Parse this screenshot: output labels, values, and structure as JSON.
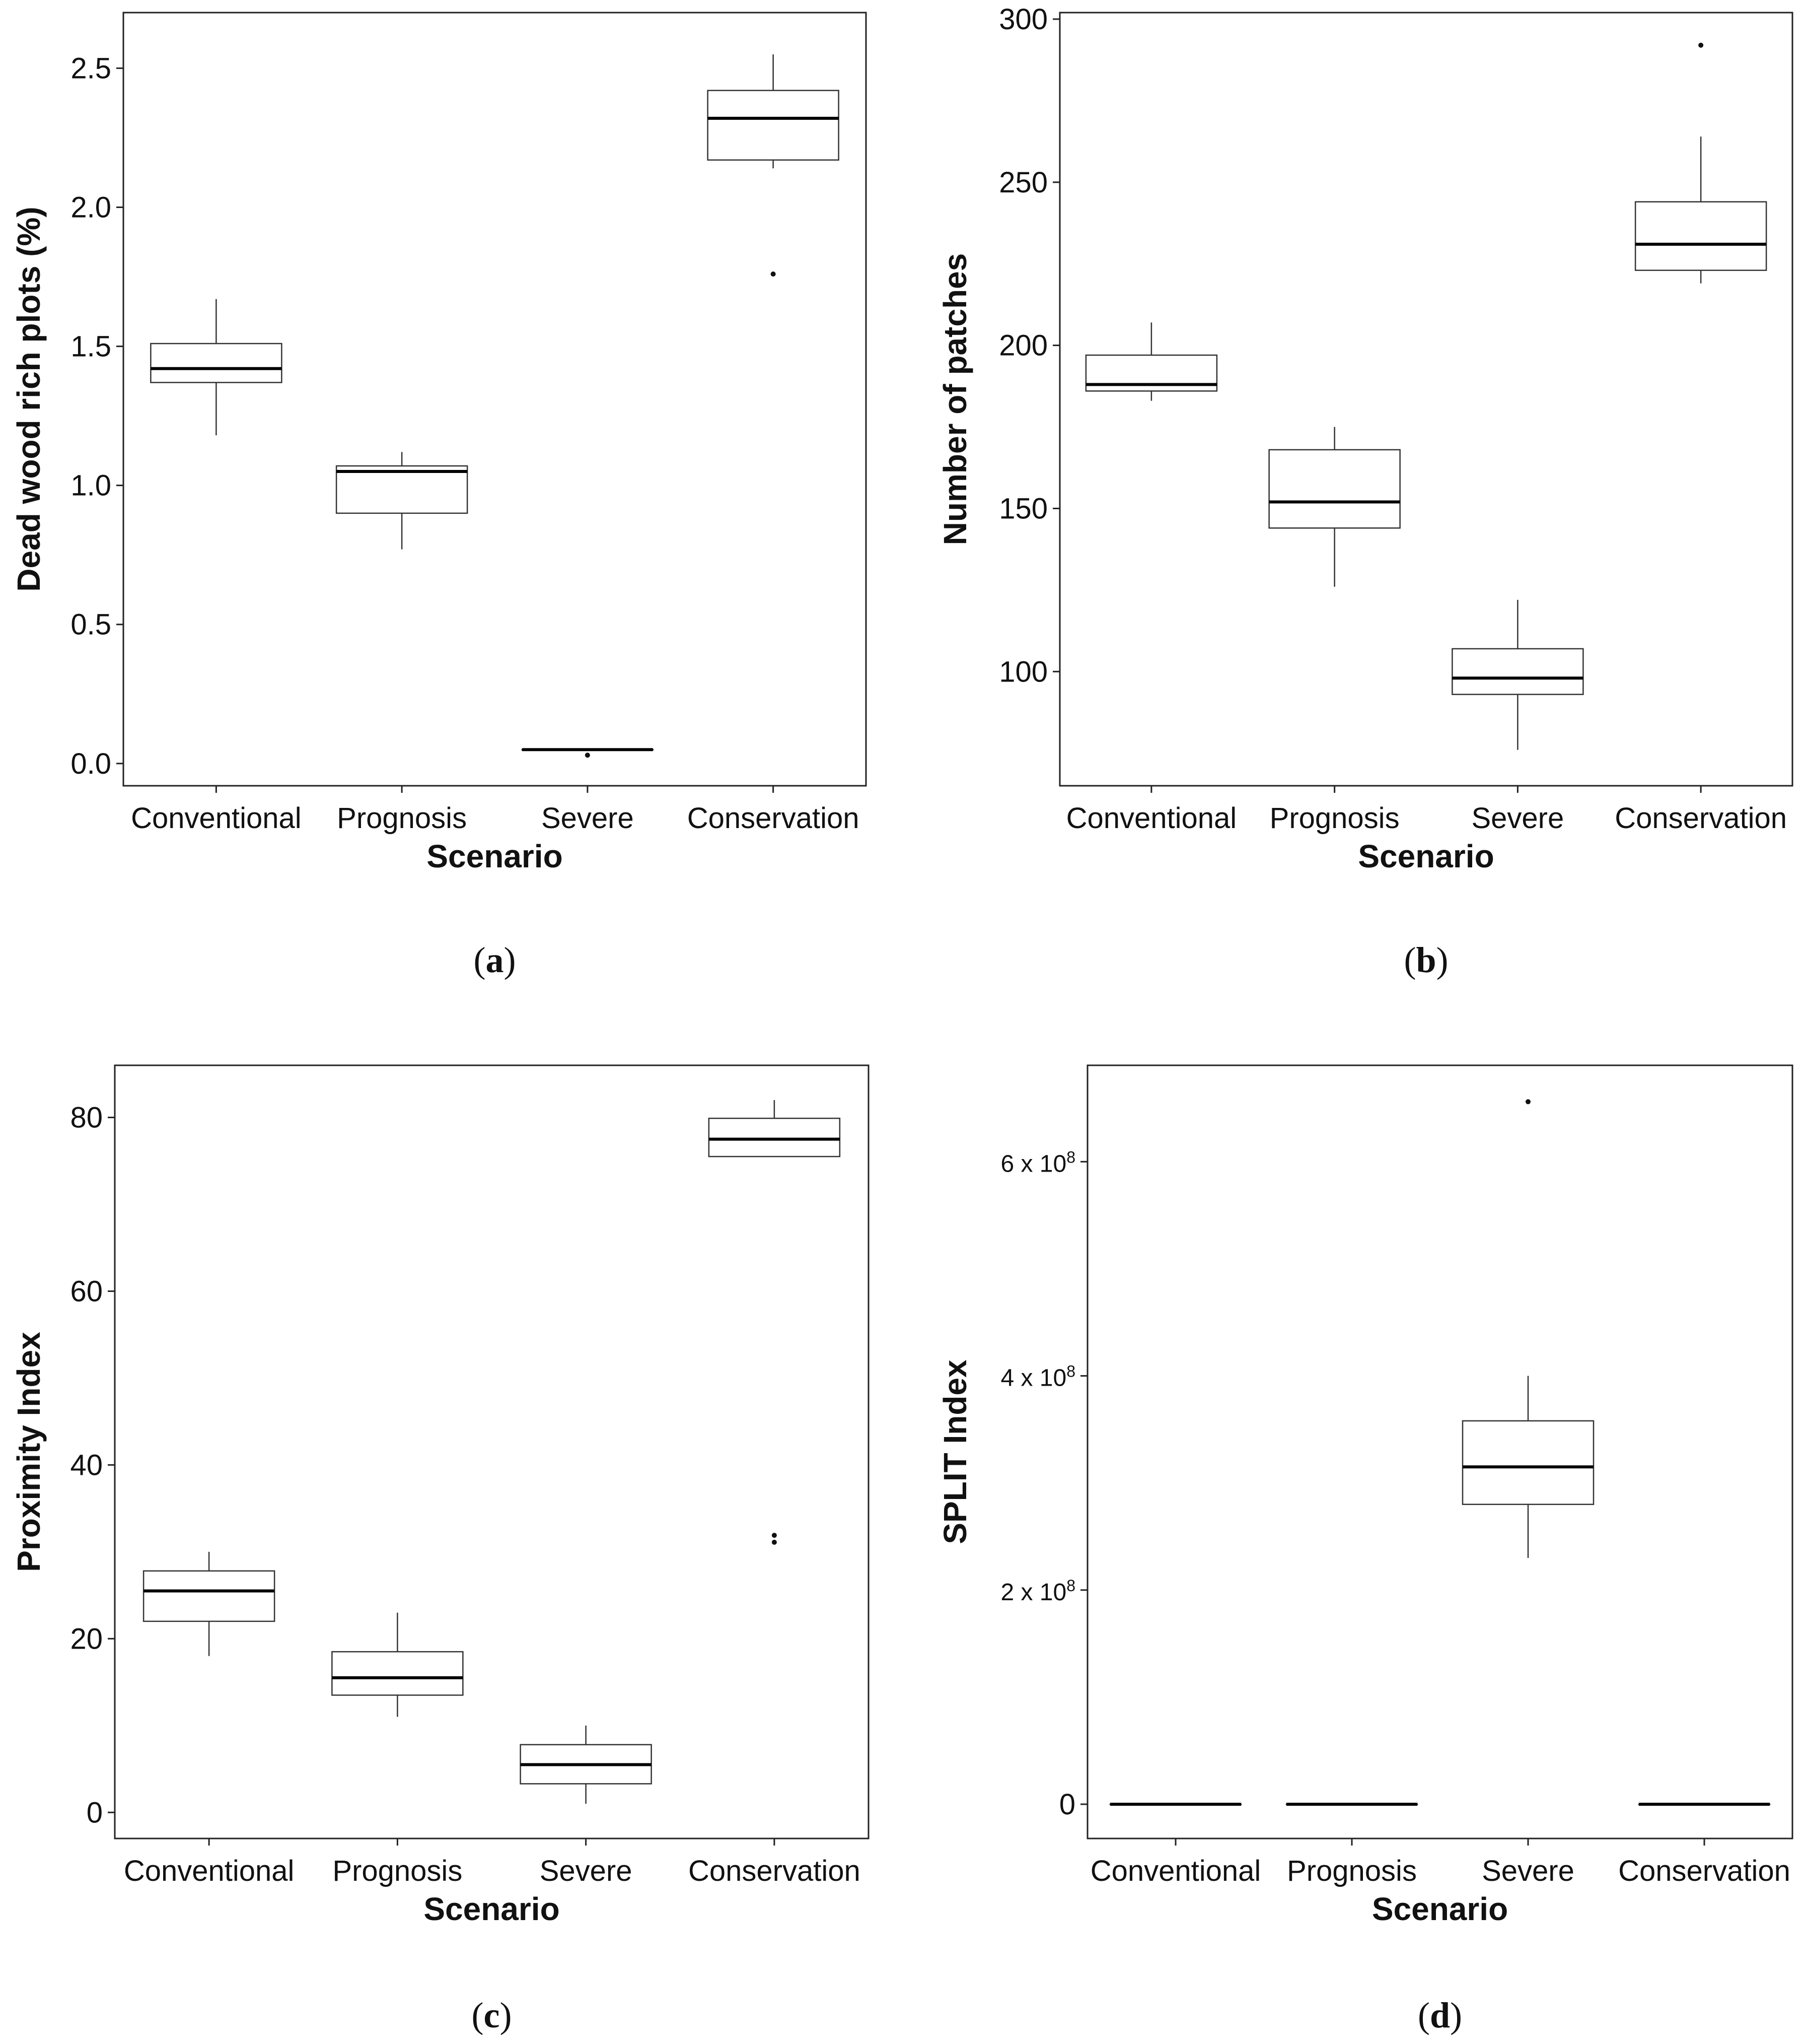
{
  "chart_data": [
    {
      "type": "box",
      "caption": "a",
      "title": "",
      "xlabel": "Scenario",
      "ylabel": "Dead wood rich plots (%)",
      "ylim": [
        -0.08,
        2.7
      ],
      "yticks": [
        0.0,
        0.5,
        1.0,
        1.5,
        2.0,
        2.5
      ],
      "ytick_labels": [
        "0.0",
        "0.5",
        "1.0",
        "1.5",
        "2.0",
        "2.5"
      ],
      "categories": [
        "Conventional",
        "Prognosis",
        "Severe",
        "Conservation"
      ],
      "boxes": [
        {
          "whisker_low": 1.18,
          "q1": 1.37,
          "median": 1.42,
          "q3": 1.51,
          "whisker_high": 1.67,
          "outliers": []
        },
        {
          "whisker_low": 0.77,
          "q1": 0.9,
          "median": 1.05,
          "q3": 1.07,
          "whisker_high": 1.12,
          "outliers": []
        },
        {
          "whisker_low": 0.05,
          "q1": 0.05,
          "median": 0.05,
          "q3": 0.05,
          "whisker_high": 0.05,
          "outliers": [
            0.03
          ]
        },
        {
          "whisker_low": 2.14,
          "q1": 2.17,
          "median": 2.32,
          "q3": 2.42,
          "whisker_high": 2.55,
          "outliers": [
            1.76
          ]
        }
      ]
    },
    {
      "type": "box",
      "caption": "b",
      "title": "",
      "xlabel": "Scenario",
      "ylabel": "Number of patches",
      "ylim": [
        65,
        302
      ],
      "yticks": [
        100,
        150,
        200,
        250,
        300
      ],
      "ytick_labels": [
        "100",
        "150",
        "200",
        "250",
        "300"
      ],
      "categories": [
        "Conventional",
        "Prognosis",
        "Severe",
        "Conservation"
      ],
      "boxes": [
        {
          "whisker_low": 183,
          "q1": 186,
          "median": 188,
          "q3": 197,
          "whisker_high": 207,
          "outliers": []
        },
        {
          "whisker_low": 126,
          "q1": 144,
          "median": 152,
          "q3": 168,
          "whisker_high": 175,
          "outliers": []
        },
        {
          "whisker_low": 76,
          "q1": 93,
          "median": 98,
          "q3": 107,
          "whisker_high": 122,
          "outliers": []
        },
        {
          "whisker_low": 219,
          "q1": 223,
          "median": 231,
          "q3": 244,
          "whisker_high": 264,
          "outliers": [
            292
          ]
        }
      ]
    },
    {
      "type": "box",
      "caption": "c",
      "title": "",
      "xlabel": "Scenario",
      "ylabel": "Proximity Index",
      "ylim": [
        -3,
        86
      ],
      "yticks": [
        0,
        20,
        40,
        60,
        80
      ],
      "ytick_labels": [
        "0",
        "20",
        "40",
        "60",
        "80"
      ],
      "categories": [
        "Conventional",
        "Prognosis",
        "Severe",
        "Conservation"
      ],
      "boxes": [
        {
          "whisker_low": 18,
          "q1": 22,
          "median": 25.5,
          "q3": 27.8,
          "whisker_high": 30,
          "outliers": []
        },
        {
          "whisker_low": 11,
          "q1": 13.5,
          "median": 15.5,
          "q3": 18.5,
          "whisker_high": 23,
          "outliers": []
        },
        {
          "whisker_low": 1,
          "q1": 3.3,
          "median": 5.5,
          "q3": 7.8,
          "whisker_high": 10,
          "outliers": []
        },
        {
          "whisker_low": 75.5,
          "q1": 75.5,
          "median": 77.5,
          "q3": 79.9,
          "whisker_high": 82,
          "outliers": [
            31.9,
            31.1
          ]
        }
      ]
    },
    {
      "type": "box",
      "caption": "d",
      "title": "",
      "xlabel": "Scenario",
      "ylabel": "SPLIT Index",
      "ylim": [
        -32000000,
        690000000
      ],
      "yticks": [
        0,
        200000000,
        400000000,
        600000000
      ],
      "ytick_labels": [
        "0",
        "2 x 10",
        "4 x 10",
        "6 x 10"
      ],
      "ytick_exponents": [
        "",
        "8",
        "8",
        "8"
      ],
      "categories": [
        "Conventional",
        "Prognosis",
        "Severe",
        "Conservation"
      ],
      "boxes": [
        {
          "whisker_low": 0,
          "q1": 0,
          "median": 0,
          "q3": 0,
          "whisker_high": 0,
          "outliers": []
        },
        {
          "whisker_low": 0,
          "q1": 0,
          "median": 0,
          "q3": 0,
          "whisker_high": 0,
          "outliers": []
        },
        {
          "whisker_low": 230000000,
          "q1": 280000000,
          "median": 315000000,
          "q3": 358000000,
          "whisker_high": 400000000,
          "outliers": [
            656000000
          ]
        },
        {
          "whisker_low": 0,
          "q1": 0,
          "median": 0,
          "q3": 0,
          "whisker_high": 0,
          "outliers": []
        }
      ]
    }
  ]
}
